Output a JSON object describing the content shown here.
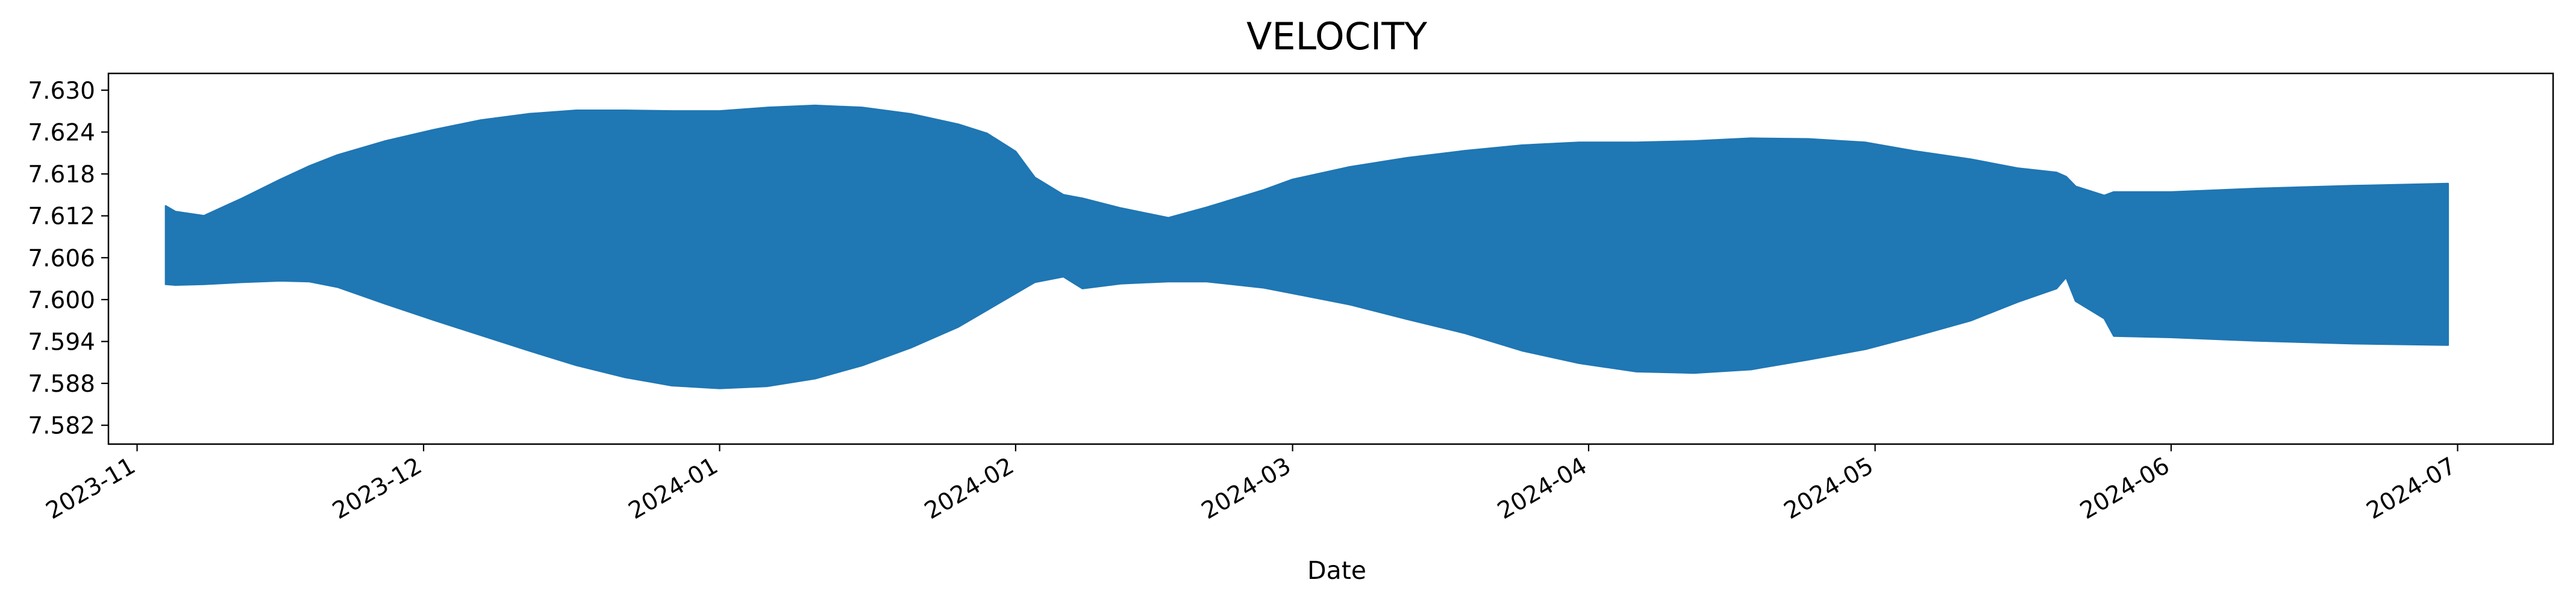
{
  "chart_data": {
    "type": "area",
    "title": "VELOCITY",
    "xlabel": "Date",
    "ylabel": "",
    "xlim": [
      "2023-10-29",
      "2024-07-11"
    ],
    "ylim": [
      7.5793,
      7.6324
    ],
    "x_ticks": [
      "2023-11",
      "2023-12",
      "2024-01",
      "2024-02",
      "2024-03",
      "2024-04",
      "2024-05",
      "2024-06",
      "2024-07"
    ],
    "y_ticks": [
      "7.582",
      "7.588",
      "7.594",
      "7.600",
      "7.606",
      "7.612",
      "7.618",
      "7.624",
      "7.630"
    ],
    "grid": false,
    "legend": "none",
    "series": [
      {
        "color": "#1f77b4",
        "x": [
          "2023-11-04",
          "2023-11-05",
          "2023-11-08",
          "2023-11-12",
          "2023-11-16",
          "2023-11-19",
          "2023-11-22",
          "2023-11-27",
          "2023-12-02",
          "2023-12-07",
          "2023-12-12",
          "2023-12-17",
          "2023-12-22",
          "2023-12-27",
          "2024-01-01",
          "2024-01-06",
          "2024-01-11",
          "2024-01-16",
          "2024-01-21",
          "2024-01-26",
          "2024-01-29",
          "2024-02-01",
          "2024-02-03",
          "2024-02-06",
          "2024-02-08",
          "2024-02-12",
          "2024-02-17",
          "2024-02-21",
          "2024-02-27",
          "2024-03-01",
          "2024-03-07",
          "2024-03-13",
          "2024-03-19",
          "2024-03-25",
          "2024-03-31",
          "2024-04-06",
          "2024-04-12",
          "2024-04-18",
          "2024-04-24",
          "2024-04-30",
          "2024-05-05",
          "2024-05-11",
          "2024-05-16",
          "2024-05-20",
          "2024-05-21",
          "2024-05-22",
          "2024-05-25",
          "2024-05-26",
          "2024-06-01",
          "2024-06-10",
          "2024-06-20",
          "2024-06-30"
        ],
        "upper": [
          7.6134,
          7.6126,
          7.612,
          7.6145,
          7.6172,
          7.6191,
          7.6207,
          7.6227,
          7.6243,
          7.6257,
          7.6266,
          7.6271,
          7.6271,
          7.627,
          7.627,
          7.6275,
          7.6278,
          7.6275,
          7.6266,
          7.6251,
          7.6238,
          7.6212,
          7.6175,
          7.615,
          7.6145,
          7.6131,
          7.6117,
          7.6132,
          7.6157,
          7.6172,
          7.619,
          7.6203,
          7.6213,
          7.6221,
          7.6225,
          7.6225,
          7.6227,
          7.6231,
          7.623,
          7.6225,
          7.6213,
          7.6201,
          7.6188,
          7.6182,
          7.6176,
          7.6162,
          7.6149,
          7.6154,
          7.6154,
          7.6159,
          7.6163,
          7.6166
        ],
        "lower": [
          7.6022,
          7.6021,
          7.6022,
          7.6025,
          7.6027,
          7.6026,
          7.6018,
          7.5994,
          7.5971,
          7.5949,
          7.5927,
          7.5906,
          7.5889,
          7.5877,
          7.5873,
          7.5876,
          7.5887,
          7.5906,
          7.5931,
          7.5961,
          7.5985,
          7.6009,
          7.6025,
          7.6033,
          7.6016,
          7.6023,
          7.6026,
          7.6026,
          7.6017,
          7.6009,
          7.5993,
          7.5972,
          7.5952,
          7.5927,
          7.5909,
          7.5897,
          7.5895,
          7.59,
          7.5914,
          7.5929,
          7.5947,
          7.597,
          7.5997,
          7.6016,
          7.6032,
          7.5998,
          7.5973,
          7.5948,
          7.5946,
          7.5941,
          7.5937,
          7.5935
        ]
      }
    ]
  }
}
